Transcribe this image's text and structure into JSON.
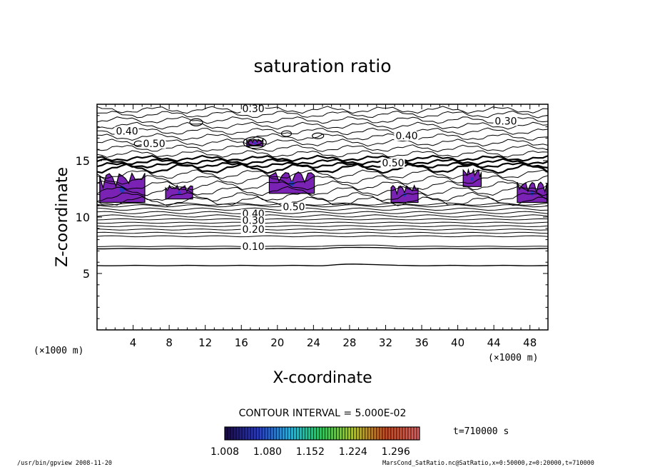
{
  "chart_data": {
    "type": "contour",
    "title": "saturation ratio",
    "xlabel": "X-coordinate",
    "ylabel": "Z-coordinate",
    "x_unit": "(×1000 m)",
    "y_unit": "(×1000 m)",
    "xlim": [
      0,
      50
    ],
    "ylim": [
      0,
      20
    ],
    "x_ticks": [
      4,
      8,
      12,
      16,
      20,
      24,
      28,
      32,
      36,
      40,
      44,
      48
    ],
    "y_ticks": [
      5,
      10,
      15
    ],
    "contour_interval_text": "CONTOUR INTERVAL = 5.000E-02",
    "time_text": "t=710000 s",
    "colorbar_ticks": [
      "1.008",
      "1.080",
      "1.152",
      "1.224",
      "1.296"
    ],
    "colorbar_range": [
      1.008,
      1.336
    ],
    "colormap": [
      "#1a0a4a",
      "#2a3bc0",
      "#2ab0d8",
      "#2fc05a",
      "#b0c030",
      "#c04a20",
      "#d86060"
    ],
    "contour_labels": [
      {
        "text": "0.30",
        "x": 16.1,
        "z": 19.3
      },
      {
        "text": "0.30",
        "x": 44.1,
        "z": 18.2
      },
      {
        "text": "0.40",
        "x": 2.1,
        "z": 17.3
      },
      {
        "text": "0.40",
        "x": 33.1,
        "z": 16.9
      },
      {
        "text": "0.50",
        "x": 5.1,
        "z": 16.2
      },
      {
        "text": "0.50",
        "x": 31.6,
        "z": 14.5
      },
      {
        "text": "0.40",
        "x": 16.1,
        "z": 10.0
      },
      {
        "text": "0.30",
        "x": 16.1,
        "z": 9.4
      },
      {
        "text": "0.20",
        "x": 16.1,
        "z": 8.6
      },
      {
        "text": "0.10",
        "x": 16.1,
        "z": 7.1
      },
      {
        "text": "0.50",
        "x": 20.6,
        "z": 10.6
      }
    ],
    "horizontal_contours_z": [
      5.7,
      7.2,
      7.4,
      8.3,
      8.6,
      8.9,
      9.2,
      9.5,
      9.8,
      10.1,
      10.4,
      10.7,
      11.0,
      11.15
    ],
    "supersaturated_regions": [
      {
        "x": [
          0.3,
          5.3
        ],
        "z": [
          11.3,
          13.9
        ]
      },
      {
        "x": [
          7.6,
          10.6
        ],
        "z": [
          11.6,
          12.8
        ]
      },
      {
        "x": [
          19.1,
          24.1
        ],
        "z": [
          12.1,
          14.0
        ]
      },
      {
        "x": [
          32.6,
          35.6
        ],
        "z": [
          11.3,
          12.8
        ]
      },
      {
        "x": [
          40.6,
          42.6
        ],
        "z": [
          12.7,
          14.2
        ]
      },
      {
        "x": [
          46.6,
          49.9
        ],
        "z": [
          11.3,
          13.1
        ]
      },
      {
        "x": [
          16.6,
          18.4
        ],
        "z": [
          16.3,
          16.9
        ]
      }
    ]
  },
  "footer": {
    "left": "/usr/bin/gpview   2008-11-20",
    "right": "MarsCond_SatRatio.nc@SatRatio,x=0:50000,z=0:20000,t=710000"
  }
}
